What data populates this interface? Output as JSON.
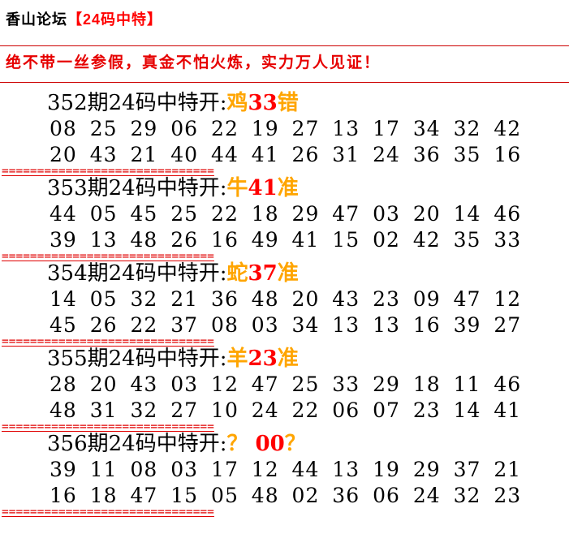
{
  "page": {
    "title_black": "香山论坛",
    "title_red": "【24码中特】",
    "slogan": "绝不带一丝参假，真金不怕火炼，实力万人见证！",
    "separator": "==============================",
    "colors": {
      "accent_red": "#ff0000",
      "slogan_red": "#e60000",
      "rule_red": "#cc0000",
      "separator_red": "#e00000",
      "zodiac_orange": "#ffa500",
      "text_black": "#000000",
      "background": "#ffffff"
    }
  },
  "sections": [
    {
      "label": "352期24码中特开:",
      "zodiac": "鸡",
      "hit_number": "33",
      "verdict": "错",
      "row1": [
        "08",
        "25",
        "29",
        "06",
        "22",
        "19",
        "27",
        "13",
        "17",
        "34",
        "32",
        "42"
      ],
      "row2": [
        "20",
        "43",
        "21",
        "40",
        "44",
        "41",
        "26",
        "31",
        "24",
        "36",
        "35",
        "16"
      ]
    },
    {
      "label": "353期24码中特开:",
      "zodiac": "牛",
      "hit_number": "41",
      "verdict": "准",
      "row1": [
        "44",
        "05",
        "45",
        "25",
        "22",
        "18",
        "29",
        "47",
        "03",
        "20",
        "14",
        "46"
      ],
      "row2": [
        "39",
        "13",
        "48",
        "26",
        "16",
        "49",
        "41",
        "15",
        "02",
        "42",
        "35",
        "33"
      ]
    },
    {
      "label": "354期24码中特开:",
      "zodiac": "蛇",
      "hit_number": "37",
      "verdict": "准",
      "row1": [
        "14",
        "05",
        "32",
        "21",
        "36",
        "48",
        "20",
        "43",
        "23",
        "09",
        "47",
        "12"
      ],
      "row2": [
        "45",
        "26",
        "22",
        "37",
        "08",
        "03",
        "34",
        "13",
        "13",
        "16",
        "39",
        "27"
      ]
    },
    {
      "label": "355期24码中特开:",
      "zodiac": "羊",
      "hit_number": "23",
      "verdict": "准",
      "row1": [
        "28",
        "20",
        "43",
        "03",
        "12",
        "47",
        "25",
        "33",
        "29",
        "18",
        "11",
        "46"
      ],
      "row2": [
        "48",
        "31",
        "32",
        "27",
        "10",
        "24",
        "22",
        "06",
        "07",
        "23",
        "14",
        "41"
      ]
    },
    {
      "label": "356期24码中特开:",
      "zodiac": "？ ",
      "hit_number": "00",
      "verdict": "？",
      "row1": [
        "39",
        "11",
        "08",
        "03",
        "17",
        "12",
        "44",
        "13",
        "19",
        "29",
        "37",
        "21"
      ],
      "row2": [
        "16",
        "18",
        "47",
        "15",
        "05",
        "48",
        "02",
        "36",
        "06",
        "24",
        "32",
        "23"
      ]
    }
  ]
}
